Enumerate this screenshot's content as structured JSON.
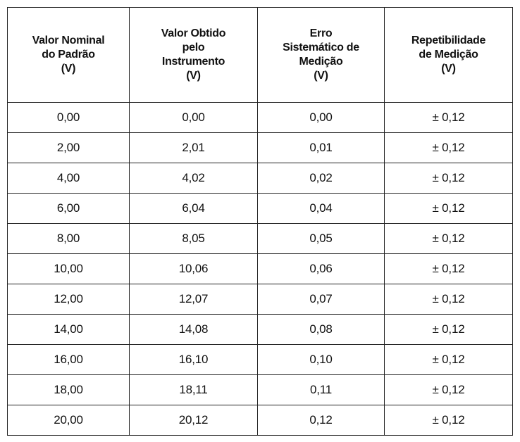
{
  "table": {
    "headers": [
      [
        "Valor Nominal",
        "do Padrão",
        "(V)"
      ],
      [
        "Valor Obtido",
        "pelo",
        "Instrumento",
        "(V)"
      ],
      [
        "Erro",
        "Sistemático de",
        "Medição",
        "(V)"
      ],
      [
        "Repetibilidade",
        "de Medição",
        "(V)"
      ]
    ],
    "rows": [
      [
        "0,00",
        "0,00",
        "0,00",
        "± 0,12"
      ],
      [
        "2,00",
        "2,01",
        "0,01",
        "± 0,12"
      ],
      [
        "4,00",
        "4,02",
        "0,02",
        "± 0,12"
      ],
      [
        "6,00",
        "6,04",
        "0,04",
        "± 0,12"
      ],
      [
        "8,00",
        "8,05",
        "0,05",
        "± 0,12"
      ],
      [
        "10,00",
        "10,06",
        "0,06",
        "± 0,12"
      ],
      [
        "12,00",
        "12,07",
        "0,07",
        "± 0,12"
      ],
      [
        "14,00",
        "14,08",
        "0,08",
        "± 0,12"
      ],
      [
        "16,00",
        "16,10",
        "0,10",
        "± 0,12"
      ],
      [
        "18,00",
        "18,11",
        "0,11",
        "± 0,12"
      ],
      [
        "20,00",
        "20,12",
        "0,12",
        "± 0,12"
      ]
    ]
  }
}
